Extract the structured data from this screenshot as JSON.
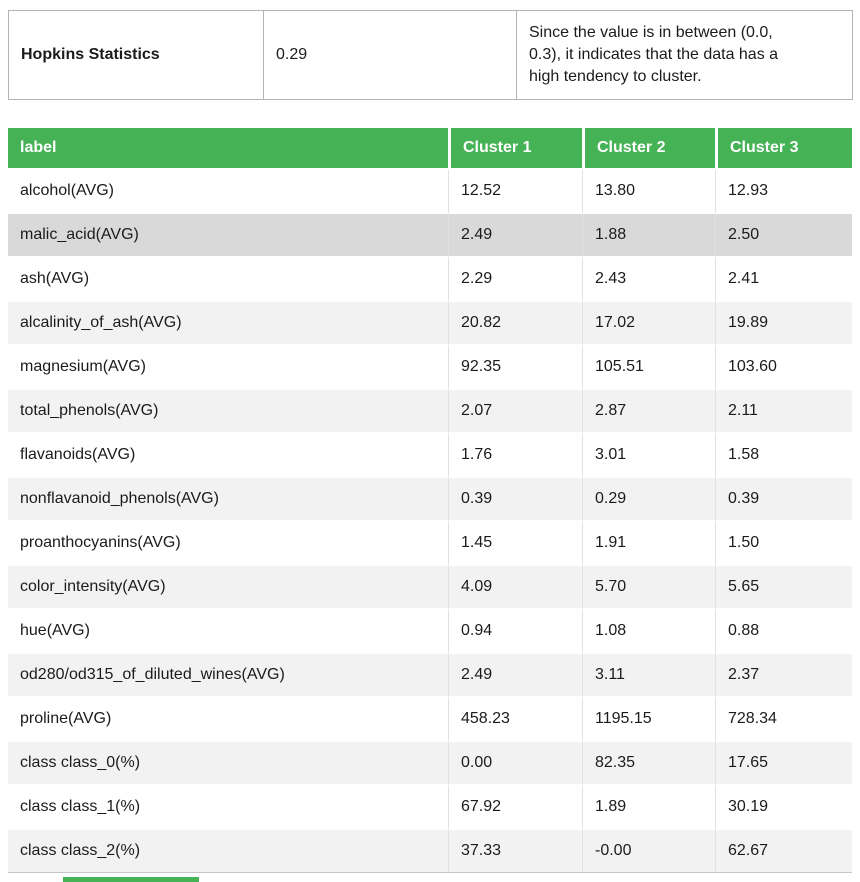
{
  "colors": {
    "header_green": "#46b256",
    "row_stripe": "#f2f2f2",
    "row_highlight": "#d9d9d9",
    "table_border": "#b4b4b4",
    "cell_border": "#e1e1e1"
  },
  "hopkins": {
    "label": "Hopkins Statistics",
    "value": "0.29",
    "description": "Since the value is in between (0.0, 0.3), it indicates that the data has a high tendency to cluster."
  },
  "cluster_table": {
    "headers": [
      "label",
      "Cluster 1",
      "Cluster 2",
      "Cluster 3"
    ],
    "rows": [
      {
        "label": "alcohol(AVG)",
        "values": [
          "12.52",
          "13.80",
          "12.93"
        ],
        "highlighted": false
      },
      {
        "label": "malic_acid(AVG)",
        "values": [
          "2.49",
          "1.88",
          "2.50"
        ],
        "highlighted": true
      },
      {
        "label": "ash(AVG)",
        "values": [
          "2.29",
          "2.43",
          "2.41"
        ],
        "highlighted": false
      },
      {
        "label": "alcalinity_of_ash(AVG)",
        "values": [
          "20.82",
          "17.02",
          "19.89"
        ],
        "highlighted": false
      },
      {
        "label": "magnesium(AVG)",
        "values": [
          "92.35",
          "105.51",
          "103.60"
        ],
        "highlighted": false
      },
      {
        "label": "total_phenols(AVG)",
        "values": [
          "2.07",
          "2.87",
          "2.11"
        ],
        "highlighted": false
      },
      {
        "label": "flavanoids(AVG)",
        "values": [
          "1.76",
          "3.01",
          "1.58"
        ],
        "highlighted": false
      },
      {
        "label": "nonflavanoid_phenols(AVG)",
        "values": [
          "0.39",
          "0.29",
          "0.39"
        ],
        "highlighted": false
      },
      {
        "label": "proanthocyanins(AVG)",
        "values": [
          "1.45",
          "1.91",
          "1.50"
        ],
        "highlighted": false
      },
      {
        "label": "color_intensity(AVG)",
        "values": [
          "4.09",
          "5.70",
          "5.65"
        ],
        "highlighted": false
      },
      {
        "label": "hue(AVG)",
        "values": [
          "0.94",
          "1.08",
          "0.88"
        ],
        "highlighted": false
      },
      {
        "label": "od280/od315_of_diluted_wines(AVG)",
        "values": [
          "2.49",
          "3.11",
          "2.37"
        ],
        "highlighted": false
      },
      {
        "label": "proline(AVG)",
        "values": [
          "458.23",
          "1195.15",
          "728.34"
        ],
        "highlighted": false
      },
      {
        "label": "class class_0(%)",
        "values": [
          "0.00",
          "82.35",
          "17.65"
        ],
        "highlighted": false
      },
      {
        "label": "class class_1(%)",
        "values": [
          "67.92",
          "1.89",
          "30.19"
        ],
        "highlighted": false
      },
      {
        "label": "class class_2(%)",
        "values": [
          "37.33",
          "-0.00",
          "62.67"
        ],
        "highlighted": false
      }
    ]
  }
}
